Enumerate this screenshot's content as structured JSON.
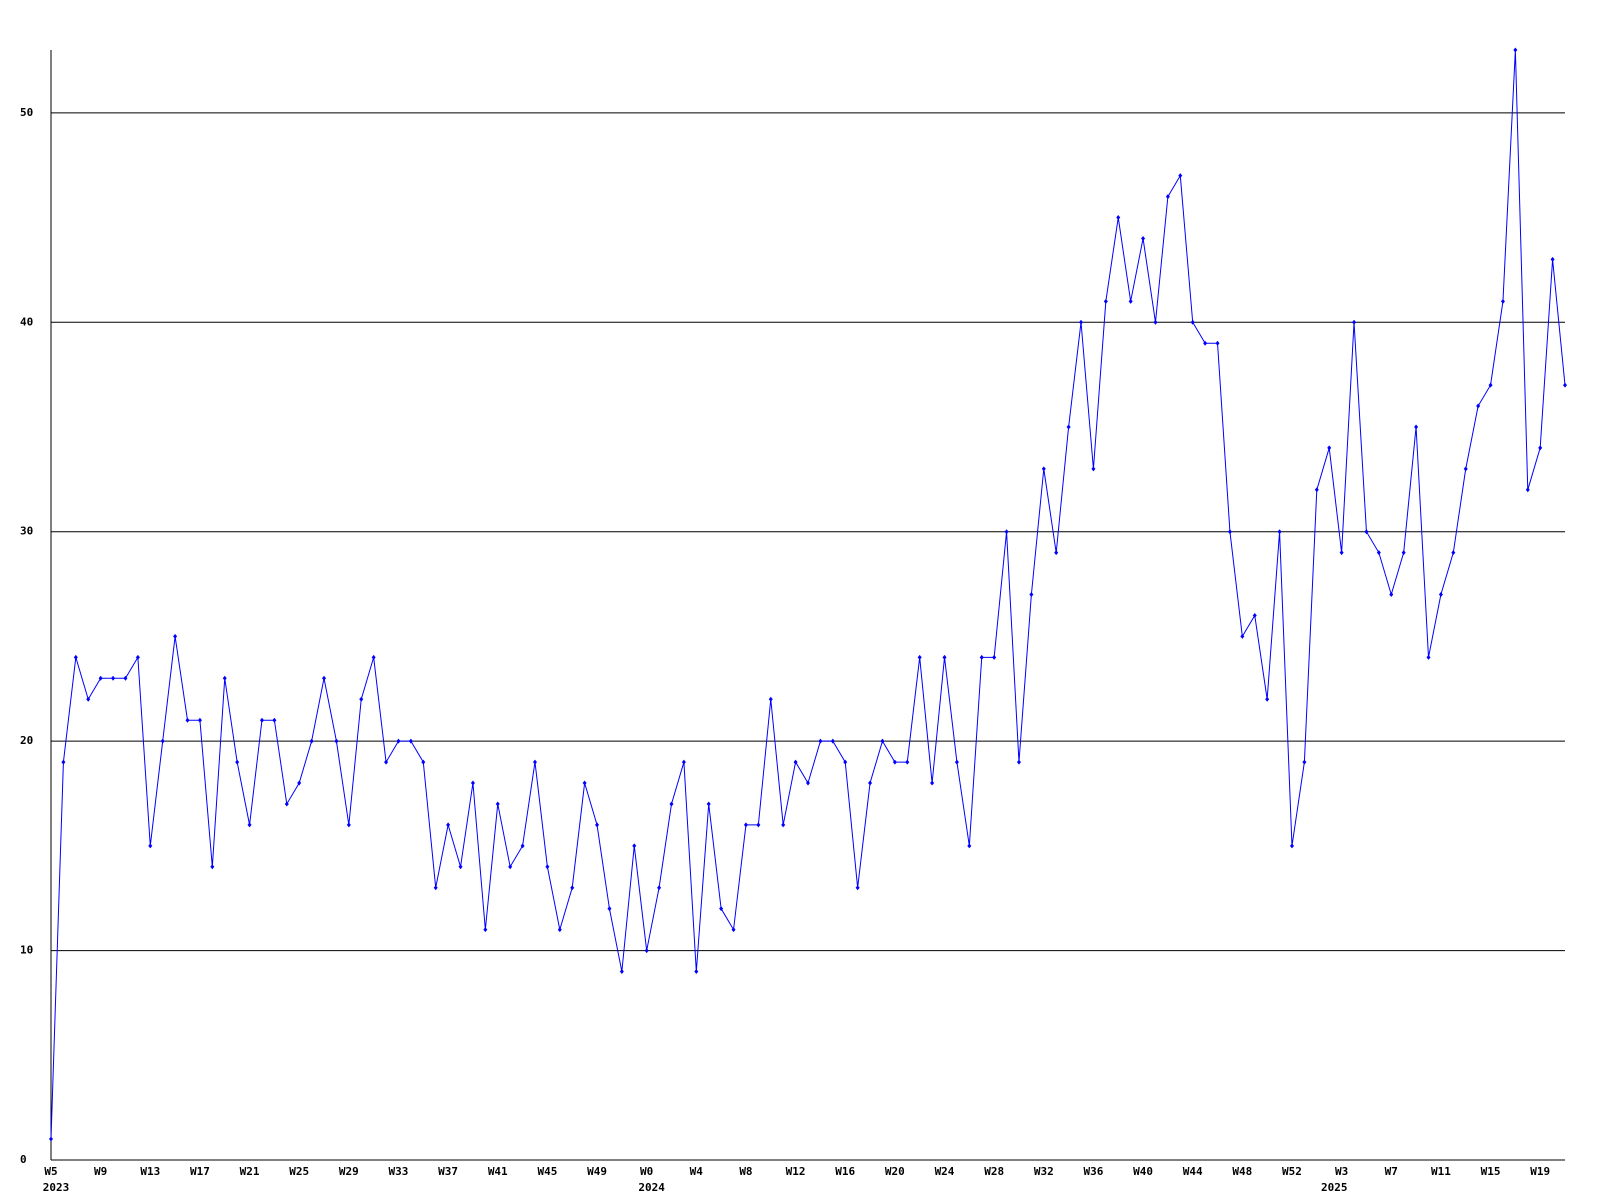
{
  "chart_data": {
    "type": "line",
    "categories": [
      "W5",
      null,
      null,
      null,
      "W9",
      null,
      null,
      null,
      "W13",
      null,
      null,
      null,
      "W17",
      null,
      null,
      null,
      "W21",
      null,
      null,
      null,
      "W25",
      null,
      null,
      null,
      "W29",
      null,
      null,
      null,
      "W33",
      null,
      null,
      null,
      "W37",
      null,
      null,
      null,
      "W41",
      null,
      null,
      null,
      "W45",
      null,
      null,
      null,
      "W49",
      null,
      null,
      null,
      "W0",
      null,
      null,
      null,
      "W4",
      null,
      null,
      null,
      "W8",
      null,
      null,
      null,
      "W12",
      null,
      null,
      null,
      "W16",
      null,
      null,
      null,
      "W20",
      null,
      null,
      null,
      "W24",
      null,
      null,
      null,
      "W28",
      null,
      null,
      null,
      "W32",
      null,
      null,
      null,
      "W36",
      null,
      null,
      null,
      "W40",
      null,
      null,
      null,
      "W44",
      null,
      null,
      null,
      "W48",
      null,
      null,
      null,
      "W52",
      null,
      null,
      null,
      "W3",
      null,
      null,
      null,
      "W7",
      null,
      null,
      null,
      "W11",
      null,
      null,
      null,
      "W15",
      null,
      null,
      null,
      "W19",
      null,
      null
    ],
    "year_labels": [
      "2023",
      null,
      null,
      null,
      null,
      null,
      null,
      null,
      null,
      null,
      null,
      null,
      null,
      null,
      null,
      null,
      null,
      null,
      null,
      null,
      null,
      null,
      null,
      null,
      null,
      null,
      null,
      null,
      null,
      null,
      null,
      null,
      null,
      null,
      null,
      null,
      null,
      null,
      null,
      null,
      null,
      null,
      null,
      null,
      null,
      null,
      null,
      null,
      "2024",
      null,
      null,
      null,
      null,
      null,
      null,
      null,
      null,
      null,
      null,
      null,
      null,
      null,
      null,
      null,
      null,
      null,
      null,
      null,
      null,
      null,
      null,
      null,
      null,
      null,
      null,
      null,
      null,
      null,
      null,
      null,
      null,
      null,
      null,
      null,
      null,
      null,
      null,
      null,
      null,
      null,
      null,
      null,
      null,
      null,
      null,
      null,
      null,
      null,
      null,
      null,
      null,
      null,
      null,
      "2025",
      null,
      null,
      null,
      null,
      null,
      null,
      null,
      null,
      null,
      null,
      null,
      null,
      null,
      null,
      null,
      null,
      null,
      null,
      null,
      null,
      null
    ],
    "values": [
      1,
      19,
      24,
      22,
      23,
      23,
      23,
      24,
      15,
      20,
      25,
      21,
      21,
      14,
      23,
      19,
      16,
      21,
      21,
      17,
      18,
      20,
      23,
      20,
      16,
      22,
      24,
      19,
      20,
      20,
      19,
      13,
      16,
      14,
      18,
      11,
      17,
      14,
      15,
      19,
      14,
      11,
      13,
      18,
      16,
      12,
      9,
      15,
      10,
      13,
      17,
      19,
      9,
      17,
      12,
      11,
      16,
      16,
      22,
      16,
      19,
      18,
      20,
      20,
      19,
      13,
      18,
      20,
      19,
      19,
      24,
      18,
      24,
      19,
      15,
      24,
      24,
      30,
      19,
      27,
      33,
      29,
      35,
      40,
      33,
      41,
      45,
      41,
      44,
      40,
      46,
      47,
      40,
      39,
      39,
      30,
      25,
      26,
      22,
      30,
      15,
      19,
      32,
      34,
      29,
      40,
      30,
      29,
      27,
      29,
      35,
      24,
      27,
      29,
      33,
      36,
      37,
      41,
      53,
      32,
      34,
      43,
      37
    ],
    "color": "#0000ff",
    "ylim": [
      0,
      53
    ],
    "yticks": [
      0,
      10,
      20,
      30,
      40,
      50
    ],
    "grid": true
  }
}
